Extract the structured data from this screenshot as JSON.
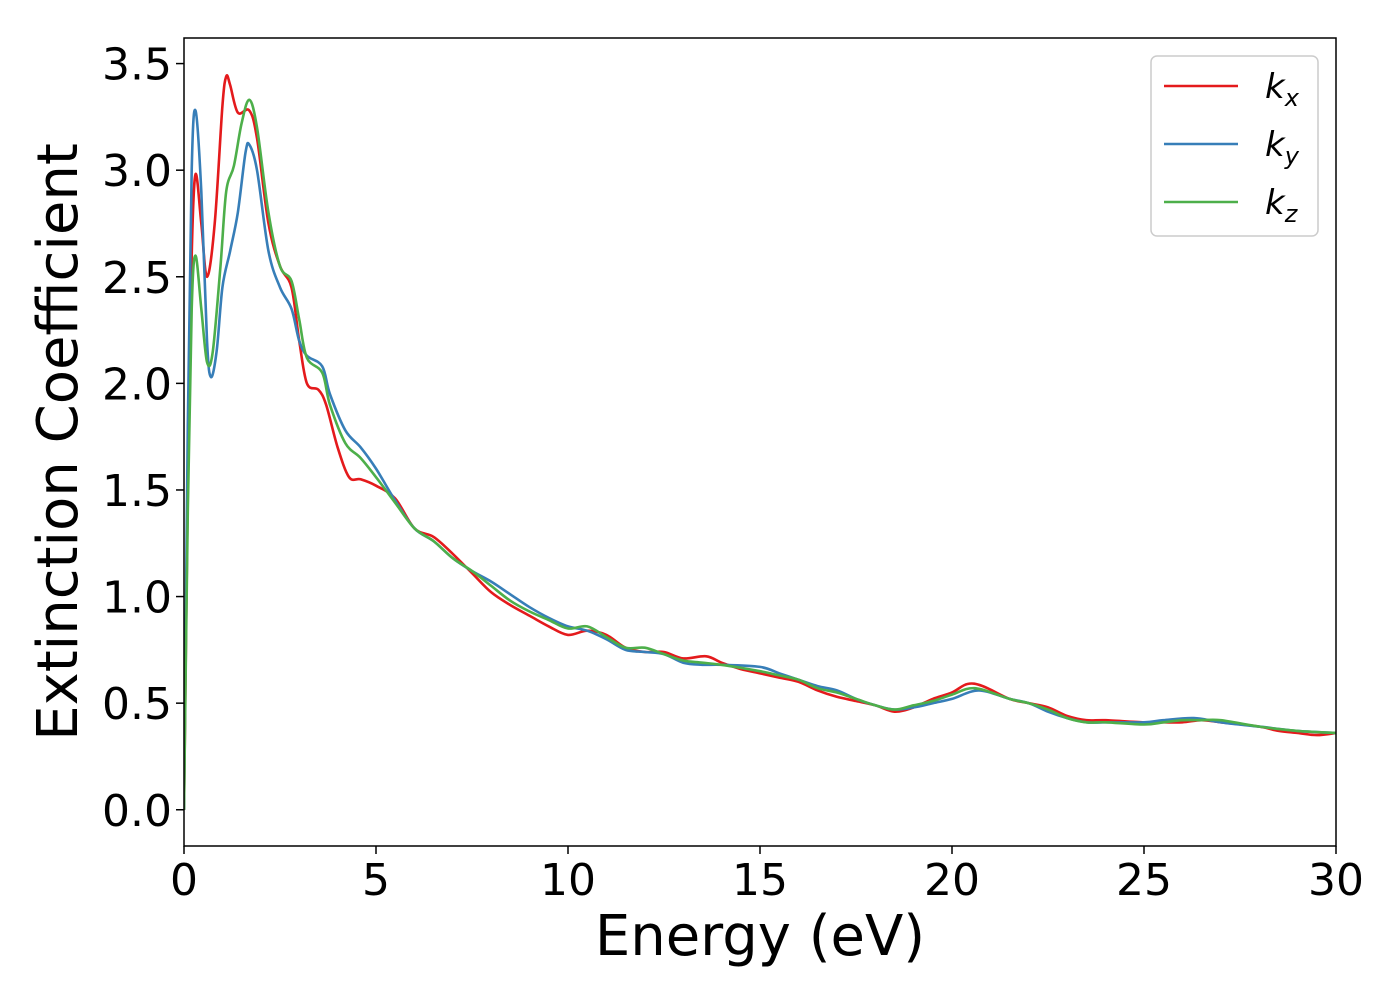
{
  "chart_data": {
    "type": "line",
    "title": "",
    "xlabel": "Energy (eV)",
    "ylabel": "Extinction Coefficient",
    "xlim": [
      0,
      30
    ],
    "ylim": [
      -0.17,
      3.62
    ],
    "x_ticks": [
      "0",
      "5",
      "10",
      "15",
      "20",
      "25",
      "30"
    ],
    "y_ticks": [
      "0.0",
      "0.5",
      "1.0",
      "1.5",
      "2.0",
      "2.5",
      "3.0",
      "3.5"
    ],
    "grid": false,
    "legend": {
      "position": "top-right",
      "entries": [
        {
          "base": "k",
          "sub": "x"
        },
        {
          "base": "k",
          "sub": "y"
        },
        {
          "base": "k",
          "sub": "z"
        }
      ]
    },
    "series": [
      {
        "name": "kx",
        "color": "#e41a1c",
        "points": [
          [
            0,
            0
          ],
          [
            0.1,
            1.5
          ],
          [
            0.2,
            2.6
          ],
          [
            0.3,
            2.98
          ],
          [
            0.45,
            2.75
          ],
          [
            0.6,
            2.5
          ],
          [
            0.8,
            2.75
          ],
          [
            1.0,
            3.3
          ],
          [
            1.1,
            3.44
          ],
          [
            1.2,
            3.4
          ],
          [
            1.4,
            3.27
          ],
          [
            1.7,
            3.28
          ],
          [
            1.9,
            3.15
          ],
          [
            2.2,
            2.75
          ],
          [
            2.5,
            2.55
          ],
          [
            2.8,
            2.45
          ],
          [
            3.0,
            2.2
          ],
          [
            3.2,
            2.0
          ],
          [
            3.5,
            1.97
          ],
          [
            3.7,
            1.9
          ],
          [
            4.0,
            1.7
          ],
          [
            4.3,
            1.56
          ],
          [
            4.6,
            1.55
          ],
          [
            5.0,
            1.52
          ],
          [
            5.5,
            1.46
          ],
          [
            6.0,
            1.32
          ],
          [
            6.5,
            1.28
          ],
          [
            7.0,
            1.2
          ],
          [
            7.5,
            1.11
          ],
          [
            8.0,
            1.02
          ],
          [
            8.5,
            0.96
          ],
          [
            9.0,
            0.91
          ],
          [
            9.5,
            0.86
          ],
          [
            10.0,
            0.82
          ],
          [
            10.5,
            0.84
          ],
          [
            11.0,
            0.82
          ],
          [
            11.5,
            0.76
          ],
          [
            12.0,
            0.74
          ],
          [
            12.5,
            0.74
          ],
          [
            13.0,
            0.71
          ],
          [
            13.6,
            0.72
          ],
          [
            14.0,
            0.69
          ],
          [
            14.5,
            0.66
          ],
          [
            15.0,
            0.64
          ],
          [
            15.5,
            0.62
          ],
          [
            16.0,
            0.6
          ],
          [
            16.5,
            0.56
          ],
          [
            17.0,
            0.53
          ],
          [
            17.5,
            0.51
          ],
          [
            18.0,
            0.49
          ],
          [
            18.5,
            0.46
          ],
          [
            19.0,
            0.48
          ],
          [
            19.5,
            0.52
          ],
          [
            20.0,
            0.55
          ],
          [
            20.4,
            0.59
          ],
          [
            20.8,
            0.58
          ],
          [
            21.5,
            0.52
          ],
          [
            22.0,
            0.5
          ],
          [
            22.5,
            0.48
          ],
          [
            23.0,
            0.44
          ],
          [
            23.5,
            0.42
          ],
          [
            24.0,
            0.42
          ],
          [
            25.0,
            0.41
          ],
          [
            25.5,
            0.41
          ],
          [
            26.0,
            0.41
          ],
          [
            26.5,
            0.42
          ],
          [
            27.0,
            0.41
          ],
          [
            28.0,
            0.39
          ],
          [
            28.5,
            0.37
          ],
          [
            29.0,
            0.36
          ],
          [
            29.5,
            0.35
          ],
          [
            30.0,
            0.36
          ]
        ]
      },
      {
        "name": "ky",
        "color": "#377eb8",
        "points": [
          [
            0,
            0
          ],
          [
            0.1,
            1.8
          ],
          [
            0.2,
            3.0
          ],
          [
            0.3,
            3.28
          ],
          [
            0.45,
            2.9
          ],
          [
            0.6,
            2.2
          ],
          [
            0.7,
            2.03
          ],
          [
            0.85,
            2.15
          ],
          [
            1.0,
            2.45
          ],
          [
            1.2,
            2.62
          ],
          [
            1.4,
            2.8
          ],
          [
            1.6,
            3.08
          ],
          [
            1.7,
            3.12
          ],
          [
            1.9,
            3.0
          ],
          [
            2.2,
            2.62
          ],
          [
            2.5,
            2.45
          ],
          [
            2.8,
            2.35
          ],
          [
            3.0,
            2.2
          ],
          [
            3.2,
            2.13
          ],
          [
            3.6,
            2.08
          ],
          [
            3.8,
            1.95
          ],
          [
            4.2,
            1.78
          ],
          [
            4.6,
            1.7
          ],
          [
            5.0,
            1.6
          ],
          [
            5.5,
            1.45
          ],
          [
            6.0,
            1.32
          ],
          [
            6.5,
            1.26
          ],
          [
            7.0,
            1.18
          ],
          [
            7.5,
            1.12
          ],
          [
            8.0,
            1.07
          ],
          [
            8.5,
            1.01
          ],
          [
            9.0,
            0.95
          ],
          [
            9.5,
            0.9
          ],
          [
            10.0,
            0.86
          ],
          [
            10.5,
            0.84
          ],
          [
            11.0,
            0.8
          ],
          [
            11.5,
            0.75
          ],
          [
            12.0,
            0.74
          ],
          [
            12.5,
            0.73
          ],
          [
            13.0,
            0.69
          ],
          [
            13.5,
            0.68
          ],
          [
            14.0,
            0.68
          ],
          [
            15.0,
            0.67
          ],
          [
            15.5,
            0.64
          ],
          [
            16.0,
            0.61
          ],
          [
            16.5,
            0.58
          ],
          [
            17.0,
            0.56
          ],
          [
            17.5,
            0.52
          ],
          [
            18.0,
            0.49
          ],
          [
            18.5,
            0.47
          ],
          [
            19.0,
            0.48
          ],
          [
            19.5,
            0.5
          ],
          [
            20.0,
            0.52
          ],
          [
            20.7,
            0.56
          ],
          [
            21.5,
            0.52
          ],
          [
            22.0,
            0.5
          ],
          [
            22.5,
            0.46
          ],
          [
            23.0,
            0.43
          ],
          [
            23.5,
            0.41
          ],
          [
            24.0,
            0.41
          ],
          [
            25.0,
            0.41
          ],
          [
            25.5,
            0.42
          ],
          [
            26.3,
            0.43
          ],
          [
            27.0,
            0.41
          ],
          [
            28.0,
            0.39
          ],
          [
            29.0,
            0.37
          ],
          [
            30.0,
            0.36
          ]
        ]
      },
      {
        "name": "kz",
        "color": "#4daf4a",
        "points": [
          [
            0,
            0
          ],
          [
            0.1,
            1.4
          ],
          [
            0.2,
            2.35
          ],
          [
            0.3,
            2.6
          ],
          [
            0.45,
            2.35
          ],
          [
            0.6,
            2.1
          ],
          [
            0.75,
            2.15
          ],
          [
            0.95,
            2.55
          ],
          [
            1.1,
            2.9
          ],
          [
            1.3,
            3.02
          ],
          [
            1.5,
            3.22
          ],
          [
            1.7,
            3.33
          ],
          [
            1.9,
            3.2
          ],
          [
            2.2,
            2.8
          ],
          [
            2.5,
            2.55
          ],
          [
            2.8,
            2.48
          ],
          [
            3.0,
            2.3
          ],
          [
            3.2,
            2.12
          ],
          [
            3.6,
            2.05
          ],
          [
            3.8,
            1.9
          ],
          [
            4.2,
            1.72
          ],
          [
            4.6,
            1.65
          ],
          [
            5.0,
            1.56
          ],
          [
            5.5,
            1.44
          ],
          [
            6.0,
            1.32
          ],
          [
            6.5,
            1.26
          ],
          [
            7.0,
            1.18
          ],
          [
            7.5,
            1.12
          ],
          [
            8.0,
            1.05
          ],
          [
            8.5,
            0.98
          ],
          [
            9.0,
            0.93
          ],
          [
            9.5,
            0.89
          ],
          [
            10.0,
            0.85
          ],
          [
            10.5,
            0.86
          ],
          [
            11.0,
            0.81
          ],
          [
            11.5,
            0.76
          ],
          [
            12.0,
            0.76
          ],
          [
            12.5,
            0.73
          ],
          [
            13.0,
            0.7
          ],
          [
            13.5,
            0.69
          ],
          [
            14.0,
            0.68
          ],
          [
            15.0,
            0.65
          ],
          [
            15.5,
            0.63
          ],
          [
            16.0,
            0.61
          ],
          [
            16.5,
            0.57
          ],
          [
            17.0,
            0.55
          ],
          [
            17.5,
            0.52
          ],
          [
            18.0,
            0.49
          ],
          [
            18.5,
            0.47
          ],
          [
            19.0,
            0.49
          ],
          [
            19.5,
            0.51
          ],
          [
            20.0,
            0.54
          ],
          [
            20.6,
            0.57
          ],
          [
            21.5,
            0.52
          ],
          [
            22.0,
            0.5
          ],
          [
            22.5,
            0.47
          ],
          [
            23.0,
            0.43
          ],
          [
            23.5,
            0.41
          ],
          [
            24.0,
            0.41
          ],
          [
            25.0,
            0.4
          ],
          [
            25.5,
            0.41
          ],
          [
            26.0,
            0.42
          ],
          [
            26.5,
            0.42
          ],
          [
            27.0,
            0.42
          ],
          [
            28.0,
            0.39
          ],
          [
            29.0,
            0.37
          ],
          [
            30.0,
            0.36
          ]
        ]
      }
    ]
  }
}
